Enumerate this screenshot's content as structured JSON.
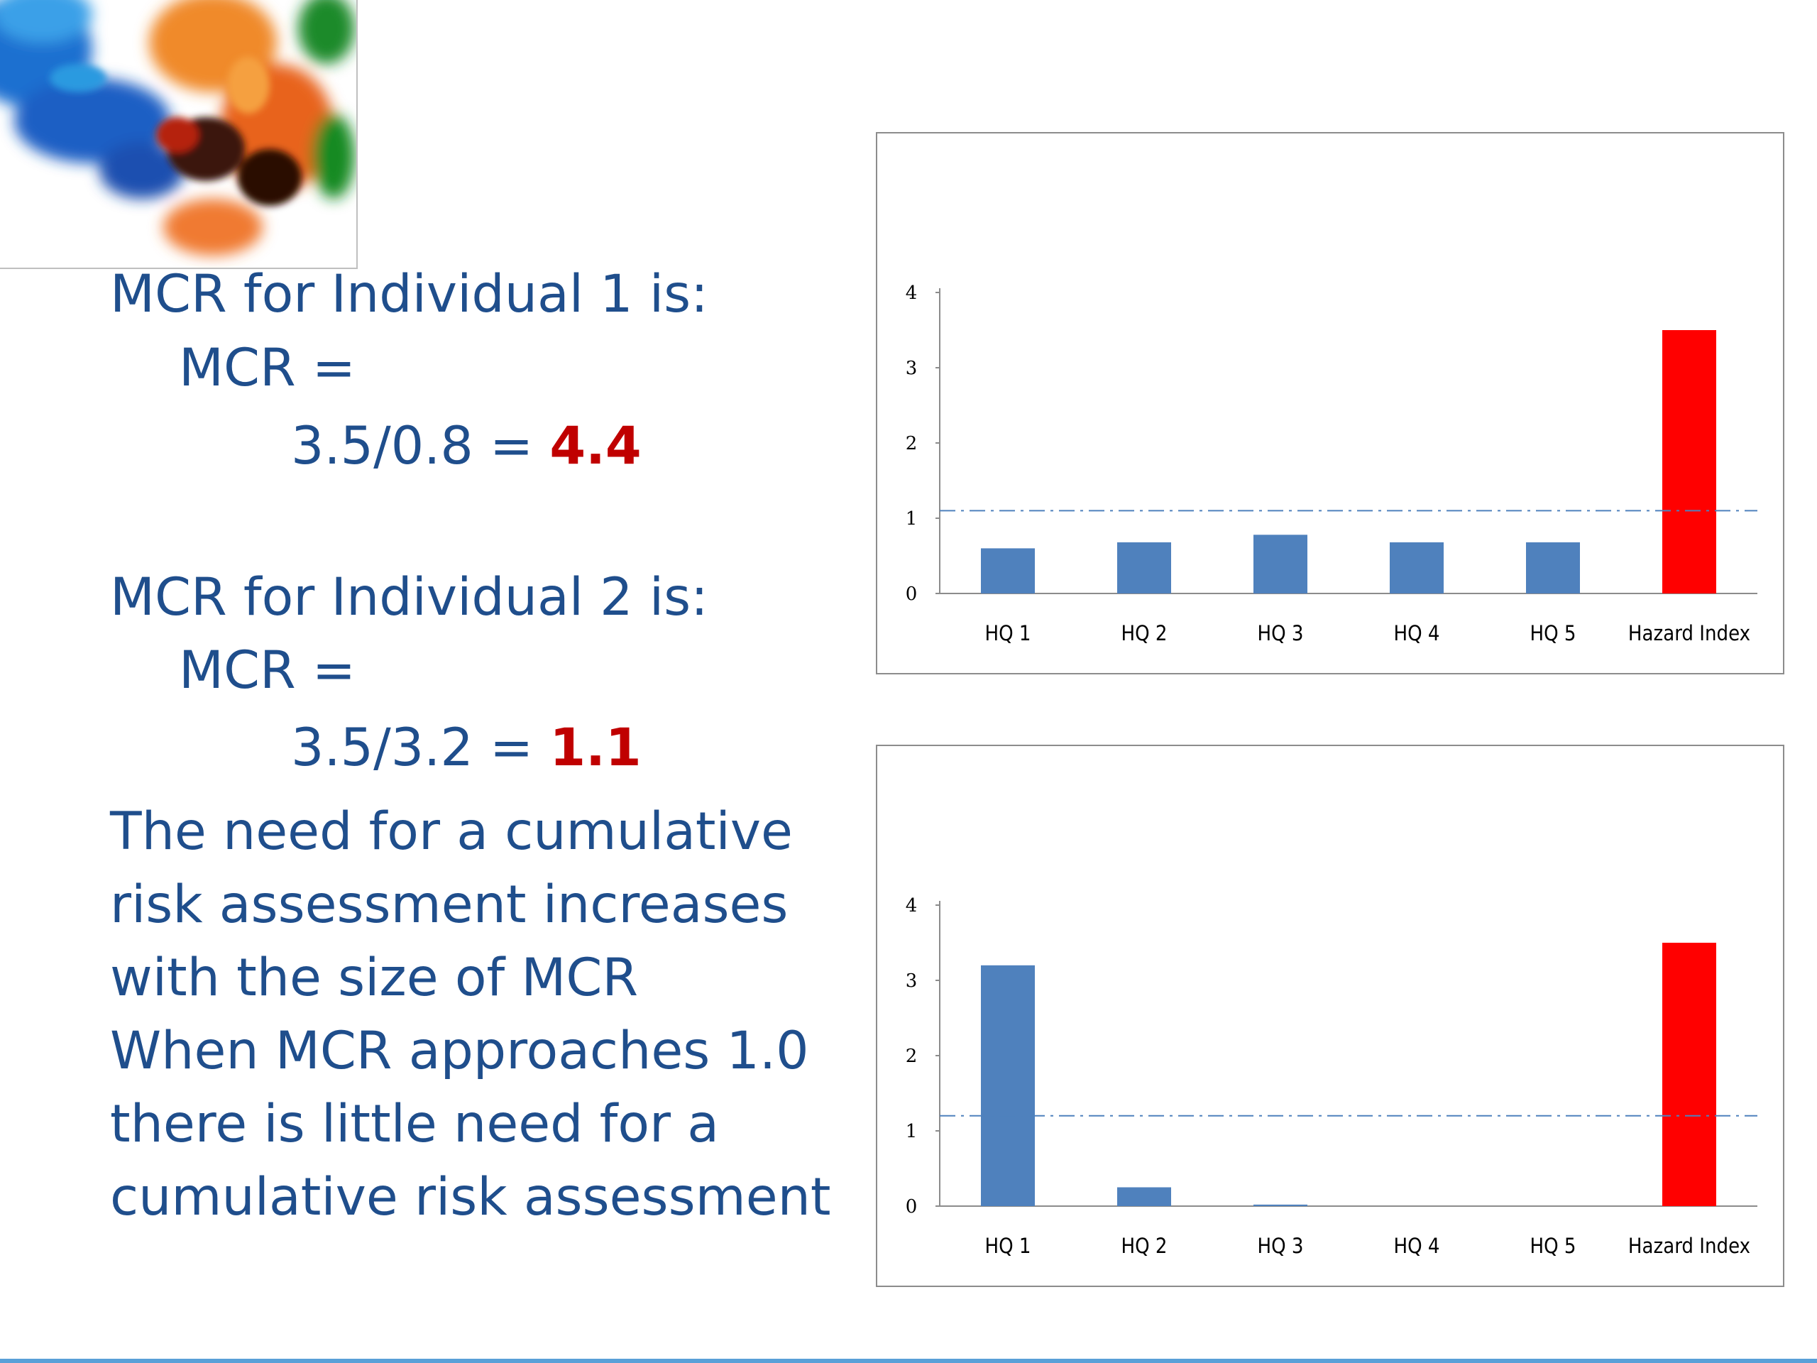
{
  "left": {
    "ind1_heading": "MCR for Individual 1 is:",
    "ind1_mcr": "MCR =",
    "ind1_calc": "3.5/0.8 =",
    "ind1_result": "4.4",
    "ind2_heading": "MCR for Individual 2 is:",
    "ind2_mcr": "MCR =",
    "ind2_calc": "3.5/3.2 =",
    "ind2_result": "1.1",
    "paragraph_lines": [
      "The need for a cumulative",
      "risk assessment increases",
      "with the size of MCR",
      "When MCR approaches 1.0",
      "there is little need for a",
      "cumulative risk assessment"
    ]
  },
  "colors": {
    "text": "#1f4e8c",
    "result": "#c00000",
    "bar": "#4f81bd",
    "hazard_bar": "#ff0000",
    "reference_line": "#4f81bd"
  },
  "chart_data": [
    {
      "type": "bar",
      "categories": [
        "HQ 1",
        "HQ 2",
        "HQ 3",
        "HQ 4",
        "HQ 5",
        "Hazard Index"
      ],
      "values": [
        0.6,
        0.68,
        0.78,
        0.68,
        0.68,
        3.5
      ],
      "bar_colors": [
        "#4f81bd",
        "#4f81bd",
        "#4f81bd",
        "#4f81bd",
        "#4f81bd",
        "#ff0000"
      ],
      "yticks": [
        0,
        1,
        2,
        3,
        4
      ],
      "ylim": [
        0,
        4
      ],
      "reference_line": 1.1,
      "reference_style": "dash-dot",
      "legend": "none",
      "grid": false
    },
    {
      "type": "bar",
      "categories": [
        "HQ 1",
        "HQ 2",
        "HQ 3",
        "HQ 4",
        "HQ 5",
        "Hazard Index"
      ],
      "values": [
        3.2,
        0.25,
        0.02,
        0,
        0,
        3.5
      ],
      "bar_colors": [
        "#4f81bd",
        "#4f81bd",
        "#4f81bd",
        "#4f81bd",
        "#4f81bd",
        "#ff0000"
      ],
      "yticks": [
        0,
        1,
        2,
        3,
        4
      ],
      "ylim": [
        0,
        4
      ],
      "reference_line": 1.2,
      "reference_style": "dash-dot",
      "legend": "none",
      "grid": false
    }
  ]
}
